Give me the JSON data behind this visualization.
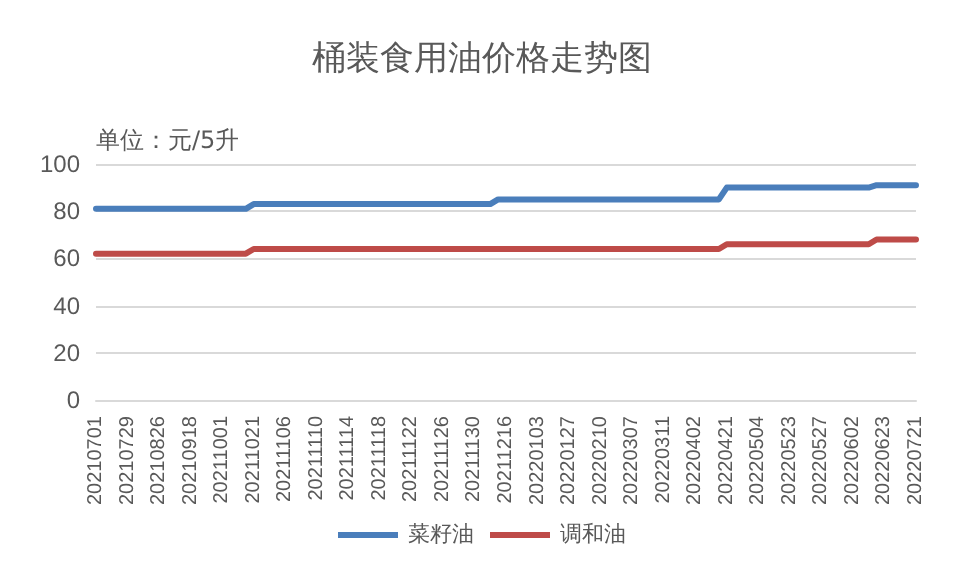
{
  "chart_data": {
    "type": "line",
    "title": "桶装食用油价格走势图",
    "annotations": [
      "单位：元/5升"
    ],
    "categories": [
      "20210701",
      null,
      null,
      null,
      "20210729",
      null,
      null,
      null,
      "20210826",
      null,
      null,
      null,
      "20210918",
      null,
      null,
      null,
      "20211001",
      null,
      null,
      null,
      "20211021",
      null,
      null,
      null,
      "20211106",
      null,
      null,
      null,
      "20211110",
      null,
      null,
      null,
      "20211114",
      null,
      null,
      null,
      "20211118",
      null,
      null,
      null,
      "20211122",
      null,
      null,
      null,
      "20211126",
      null,
      null,
      null,
      "20211130",
      null,
      null,
      null,
      "20211216",
      null,
      null,
      null,
      "20220103",
      null,
      null,
      null,
      "20220127",
      null,
      null,
      null,
      "20220210",
      null,
      null,
      null,
      "20220307",
      null,
      null,
      null,
      "20220311",
      null,
      null,
      null,
      "20220402",
      null,
      null,
      null,
      "20220421",
      null,
      null,
      null,
      "20220504",
      null,
      null,
      null,
      "20220523",
      null,
      null,
      null,
      "20220527",
      null,
      null,
      null,
      "20220602",
      null,
      null,
      null,
      "20220623",
      null,
      null,
      null,
      "20220721"
    ],
    "series": [
      {
        "name": "菜籽油",
        "color": "#4a7ebb",
        "values": [
          81,
          81,
          81,
          81,
          81,
          81,
          81,
          81,
          81,
          81,
          81,
          81,
          81,
          81,
          81,
          81,
          81,
          81,
          81,
          81,
          83,
          83,
          83,
          83,
          83,
          83,
          83,
          83,
          83,
          83,
          83,
          83,
          83,
          83,
          83,
          83,
          83,
          83,
          83,
          83,
          83,
          83,
          83,
          83,
          83,
          83,
          83,
          83,
          83,
          83,
          83,
          85,
          85,
          85,
          85,
          85,
          85,
          85,
          85,
          85,
          85,
          85,
          85,
          85,
          85,
          85,
          85,
          85,
          85,
          85,
          85,
          85,
          85,
          85,
          85,
          85,
          85,
          85,
          85,
          85,
          90,
          90,
          90,
          90,
          90,
          90,
          90,
          90,
          90,
          90,
          90,
          90,
          90,
          90,
          90,
          90,
          90,
          90,
          90,
          91,
          91,
          91,
          91,
          91,
          91
        ]
      },
      {
        "name": "调和油",
        "color": "#be4b48",
        "values": [
          62,
          62,
          62,
          62,
          62,
          62,
          62,
          62,
          62,
          62,
          62,
          62,
          62,
          62,
          62,
          62,
          62,
          62,
          62,
          62,
          64,
          64,
          64,
          64,
          64,
          64,
          64,
          64,
          64,
          64,
          64,
          64,
          64,
          64,
          64,
          64,
          64,
          64,
          64,
          64,
          64,
          64,
          64,
          64,
          64,
          64,
          64,
          64,
          64,
          64,
          64,
          64,
          64,
          64,
          64,
          64,
          64,
          64,
          64,
          64,
          64,
          64,
          64,
          64,
          64,
          64,
          64,
          64,
          64,
          64,
          64,
          64,
          64,
          64,
          64,
          64,
          64,
          64,
          64,
          64,
          66,
          66,
          66,
          66,
          66,
          66,
          66,
          66,
          66,
          66,
          66,
          66,
          66,
          66,
          66,
          66,
          66,
          66,
          66,
          68,
          68,
          68,
          68,
          68,
          68
        ]
      }
    ],
    "ylim": [
      0,
      100
    ],
    "yticks": [
      0,
      20,
      40,
      60,
      80,
      100
    ],
    "grid": "y",
    "legend": "bottom",
    "marker": "none",
    "line_style": "solid"
  }
}
